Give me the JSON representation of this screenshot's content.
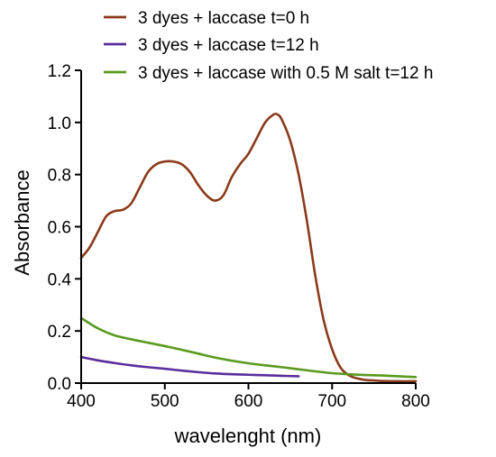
{
  "chart_data": {
    "type": "line",
    "title": "",
    "xlabel": "wavelenght (nm)",
    "ylabel": "Absorbance",
    "xlim": [
      400,
      800
    ],
    "ylim": [
      0,
      1.2
    ],
    "xticks": [
      400,
      500,
      600,
      700,
      800
    ],
    "yticks": [
      0.0,
      0.2,
      0.4,
      0.6,
      0.8,
      1.0,
      1.2
    ],
    "xtick_labels": [
      "400",
      "500",
      "600",
      "700",
      "800"
    ],
    "ytick_labels": [
      "0.0",
      "0.2",
      "0.4",
      "0.6",
      "0.8",
      "1.0",
      "1.2"
    ],
    "grid": false,
    "legend_position": "top",
    "series": [
      {
        "name": "3 dyes + laccase t=0 h",
        "color": "#8B3A1A",
        "x": [
          400,
          410,
          420,
          430,
          440,
          450,
          460,
          470,
          480,
          490,
          500,
          510,
          520,
          530,
          540,
          550,
          560,
          570,
          580,
          590,
          600,
          610,
          620,
          630,
          635,
          640,
          650,
          660,
          670,
          680,
          690,
          700,
          710,
          720,
          730,
          740,
          750,
          760,
          780,
          800
        ],
        "y": [
          0.48,
          0.52,
          0.58,
          0.64,
          0.66,
          0.665,
          0.69,
          0.75,
          0.81,
          0.84,
          0.85,
          0.85,
          0.84,
          0.81,
          0.76,
          0.72,
          0.7,
          0.72,
          0.79,
          0.84,
          0.88,
          0.94,
          1.0,
          1.03,
          1.03,
          1.01,
          0.93,
          0.8,
          0.62,
          0.41,
          0.24,
          0.13,
          0.06,
          0.03,
          0.018,
          0.012,
          0.01,
          0.008,
          0.007,
          0.007
        ]
      },
      {
        "name": "3 dyes + laccase t=12 h",
        "color": "#5A2D9C",
        "x": [
          400,
          420,
          440,
          460,
          480,
          500,
          520,
          540,
          560,
          580,
          600,
          620,
          640,
          660
        ],
        "y": [
          0.1,
          0.087,
          0.077,
          0.068,
          0.061,
          0.055,
          0.048,
          0.042,
          0.037,
          0.034,
          0.032,
          0.03,
          0.028,
          0.026
        ]
      },
      {
        "name": "3 dyes + laccase with 0.5 M salt t=12 h",
        "color": "#5A9A1E",
        "x": [
          400,
          420,
          440,
          460,
          480,
          500,
          520,
          540,
          560,
          580,
          600,
          620,
          640,
          660,
          680,
          700,
          720,
          740,
          760,
          780,
          800
        ],
        "y": [
          0.25,
          0.21,
          0.183,
          0.168,
          0.155,
          0.142,
          0.128,
          0.113,
          0.098,
          0.086,
          0.076,
          0.068,
          0.061,
          0.053,
          0.045,
          0.038,
          0.034,
          0.031,
          0.029,
          0.026,
          0.023
        ]
      }
    ]
  }
}
